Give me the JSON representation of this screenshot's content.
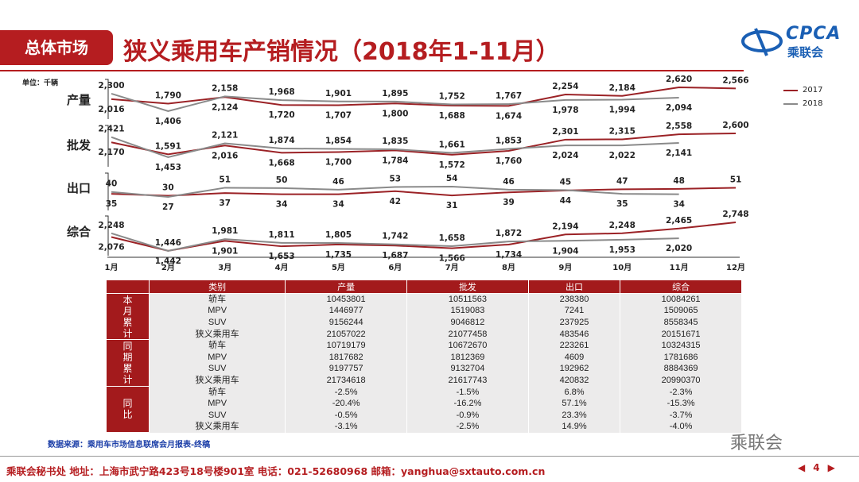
{
  "header": {
    "section": "总体市场",
    "title": "狭义乘用车产销情况（2018年1-11月）",
    "logo_en": "CPCA",
    "logo_cn": "乘联会"
  },
  "unit": "单位：千辆",
  "colors": {
    "y2017": "#9b2226",
    "y2018": "#8a8a8a",
    "accent": "#b51d20"
  },
  "chart_data": {
    "type": "line",
    "unit": "千辆",
    "months": [
      "1月",
      "2月",
      "3月",
      "4月",
      "5月",
      "6月",
      "7月",
      "8月",
      "9月",
      "10月",
      "11月",
      "12月"
    ],
    "legend": [
      "2017",
      "2018"
    ],
    "legend_position": "top-right",
    "panels": [
      {
        "name": "产量",
        "s2017": [
          2016,
          1790,
          2124,
          1720,
          1707,
          1800,
          1688,
          1674,
          2254,
          2184,
          2620,
          2566
        ],
        "s2018": [
          2300,
          1406,
          2158,
          1968,
          1901,
          1895,
          1752,
          1767,
          1978,
          1994,
          2094
        ]
      },
      {
        "name": "批发",
        "s2017": [
          2170,
          1591,
          2016,
          1668,
          1700,
          1784,
          1572,
          1760,
          2301,
          2315,
          2558,
          2600
        ],
        "s2018": [
          2421,
          1453,
          2121,
          1874,
          1854,
          1835,
          1661,
          1853,
          2024,
          2022,
          2141
        ]
      },
      {
        "name": "出口",
        "s2017": [
          35,
          30,
          37,
          34,
          34,
          42,
          31,
          39,
          44,
          47,
          48,
          51
        ],
        "s2018": [
          40,
          27,
          51,
          50,
          46,
          53,
          54,
          46,
          45,
          35,
          34
        ]
      },
      {
        "name": "综合",
        "s2017": [
          2076,
          1446,
          1901,
          1653,
          1735,
          1687,
          1566,
          1734,
          2194,
          2248,
          2465,
          2748
        ],
        "s2018": [
          2248,
          1442,
          1981,
          1811,
          1805,
          1742,
          1658,
          1872,
          1904,
          1953,
          2020
        ]
      }
    ]
  },
  "table": {
    "headers": [
      "类别",
      "产量",
      "批发",
      "出口",
      "综合"
    ],
    "groups": [
      {
        "label": "本\n月\n累\n计",
        "rows": [
          [
            "轿车",
            "10453801",
            "10511563",
            "238380",
            "10084261"
          ],
          [
            "MPV",
            "1446977",
            "1519083",
            "7241",
            "1509065"
          ],
          [
            "SUV",
            "9156244",
            "9046812",
            "237925",
            "8558345"
          ],
          [
            "狭义乘用车",
            "21057022",
            "21077458",
            "483546",
            "20151671"
          ]
        ]
      },
      {
        "label": "同\n期\n累\n计",
        "rows": [
          [
            "轿车",
            "10719179",
            "10672670",
            "223261",
            "10324315"
          ],
          [
            "MPV",
            "1817682",
            "1812369",
            "4609",
            "1781686"
          ],
          [
            "SUV",
            "9197757",
            "9132704",
            "192962",
            "8884369"
          ],
          [
            "狭义乘用车",
            "21734618",
            "21617743",
            "420832",
            "20990370"
          ]
        ]
      },
      {
        "label": "同\n比",
        "rows": [
          [
            "轿车",
            "-2.5%",
            "-1.5%",
            "6.8%",
            "-2.3%"
          ],
          [
            "MPV",
            "-20.4%",
            "-16.2%",
            "57.1%",
            "-15.3%"
          ],
          [
            "SUV",
            "-0.5%",
            "-0.9%",
            "23.3%",
            "-3.7%"
          ],
          [
            "狭义乘用车",
            "-3.1%",
            "-2.5%",
            "14.9%",
            "-4.0%"
          ]
        ]
      }
    ]
  },
  "source": "数据来源：乘用车市场信息联席会月报表-终稿",
  "footer": "乘联会秘书处   地址：上海市武宁路423号18号楼901室   电话：021-52680968   邮箱：yanghua@sxtauto.com.cn",
  "watermark": "乘联会",
  "page": "4"
}
